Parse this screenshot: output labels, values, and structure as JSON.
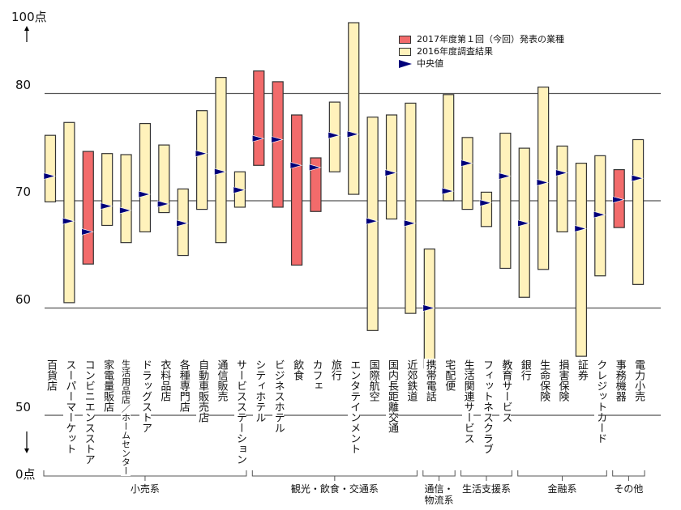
{
  "chart_data": {
    "type": "range-bar",
    "title": "",
    "y_top_label": "100点",
    "y_bottom_label": "0点",
    "y_ticks": [
      "80",
      "70",
      "60",
      "50"
    ],
    "ylim_visible": [
      50,
      88
    ],
    "axis_break": "between 0 and 50",
    "grid": true,
    "legend_placement": "top-right",
    "legend": {
      "current": "2017年度第１回（今回）発表の業種",
      "previous": "2016年度調査結果",
      "median": "中央値"
    },
    "colors": {
      "current": "#f26b6b",
      "previous": "#fff2bb",
      "median": "#00007a",
      "border": "#333333"
    },
    "categories": [
      {
        "name": "百貨店",
        "max": 76.1,
        "min": 69.9,
        "median": 72.3,
        "current": false
      },
      {
        "name": "スーパーマーケット",
        "max": 77.3,
        "min": 60.5,
        "median": 68.1,
        "current": false
      },
      {
        "name": "コンビニエンスストア",
        "max": 74.6,
        "min": 64.1,
        "median": 67.1,
        "current": true
      },
      {
        "name": "家電量販店",
        "max": 74.4,
        "min": 67.7,
        "median": 69.5,
        "current": false
      },
      {
        "name": "生活用品店／ホームセンター",
        "max": 74.3,
        "min": 66.1,
        "median": 69.1,
        "current": false
      },
      {
        "name": "ドラッグストア",
        "max": 77.2,
        "min": 67.1,
        "median": 70.6,
        "current": false
      },
      {
        "name": "衣料品店",
        "max": 75.2,
        "min": 68.9,
        "median": 69.7,
        "current": false
      },
      {
        "name": "各種専門店",
        "max": 71.1,
        "min": 64.9,
        "median": 67.9,
        "current": false
      },
      {
        "name": "自動車販売店",
        "max": 78.4,
        "min": 69.2,
        "median": 74.4,
        "current": false
      },
      {
        "name": "通信販売",
        "max": 81.5,
        "min": 66.1,
        "median": 72.7,
        "current": false
      },
      {
        "name": "サービスステーション",
        "max": 72.7,
        "min": 69.4,
        "median": 71.0,
        "current": false
      },
      {
        "name": "シティホテル",
        "max": 82.1,
        "min": 73.3,
        "median": 75.8,
        "current": true
      },
      {
        "name": "ビジネスホテル",
        "max": 81.1,
        "min": 69.4,
        "median": 75.7,
        "current": true
      },
      {
        "name": "飲食",
        "max": 78.0,
        "min": 64.0,
        "median": 73.3,
        "current": true
      },
      {
        "name": "カフェ",
        "max": 74.0,
        "min": 69.0,
        "median": 73.1,
        "current": true
      },
      {
        "name": "旅行",
        "max": 79.2,
        "min": 72.7,
        "median": 76.1,
        "current": false
      },
      {
        "name": "エンタテインメント",
        "max": 86.6,
        "min": 70.6,
        "median": 76.2,
        "current": false
      },
      {
        "name": "国際航空",
        "max": 77.8,
        "min": 57.9,
        "median": 68.1,
        "current": false
      },
      {
        "name": "国内長距離交通",
        "max": 78.0,
        "min": 68.3,
        "median": 72.6,
        "current": false
      },
      {
        "name": "近郊鉄道",
        "max": 79.1,
        "min": 59.5,
        "median": 67.9,
        "current": false
      },
      {
        "name": "携帯電話",
        "max": 65.5,
        "min": 54.4,
        "median": 60.0,
        "current": false
      },
      {
        "name": "宅配便",
        "max": 79.9,
        "min": 70.0,
        "median": 70.9,
        "current": false
      },
      {
        "name": "生活関連サービス",
        "max": 75.9,
        "min": 69.2,
        "median": 73.5,
        "current": false
      },
      {
        "name": "フィットネスクラブ",
        "max": 70.8,
        "min": 67.6,
        "median": 69.8,
        "current": false
      },
      {
        "name": "教育サービス",
        "max": 76.3,
        "min": 63.7,
        "median": 72.3,
        "current": false
      },
      {
        "name": "銀行",
        "max": 74.9,
        "min": 61.0,
        "median": 67.9,
        "current": false
      },
      {
        "name": "生命保険",
        "max": 80.6,
        "min": 63.6,
        "median": 71.7,
        "current": false
      },
      {
        "name": "損害保険",
        "max": 75.1,
        "min": 67.1,
        "median": 72.6,
        "current": false
      },
      {
        "name": "証券",
        "max": 73.5,
        "min": 55.5,
        "median": 67.4,
        "current": false
      },
      {
        "name": "クレジットカード",
        "max": 74.2,
        "min": 63.0,
        "median": 68.7,
        "current": false
      },
      {
        "name": "事務機器",
        "max": 72.9,
        "min": 67.5,
        "median": 70.1,
        "current": true
      },
      {
        "name": "電力小売",
        "max": 75.7,
        "min": 62.2,
        "median": 72.1,
        "current": false
      }
    ],
    "groups": [
      {
        "name": "小売系",
        "from": 0,
        "to": 10
      },
      {
        "name": "観光・飲食・交通系",
        "from": 11,
        "to": 19
      },
      {
        "name": "通信・物流系",
        "from": 20,
        "to": 21
      },
      {
        "name": "生活支援系",
        "from": 22,
        "to": 24
      },
      {
        "name": "金融系",
        "from": 25,
        "to": 29
      },
      {
        "name": "その他",
        "from": 30,
        "to": 31
      }
    ]
  }
}
